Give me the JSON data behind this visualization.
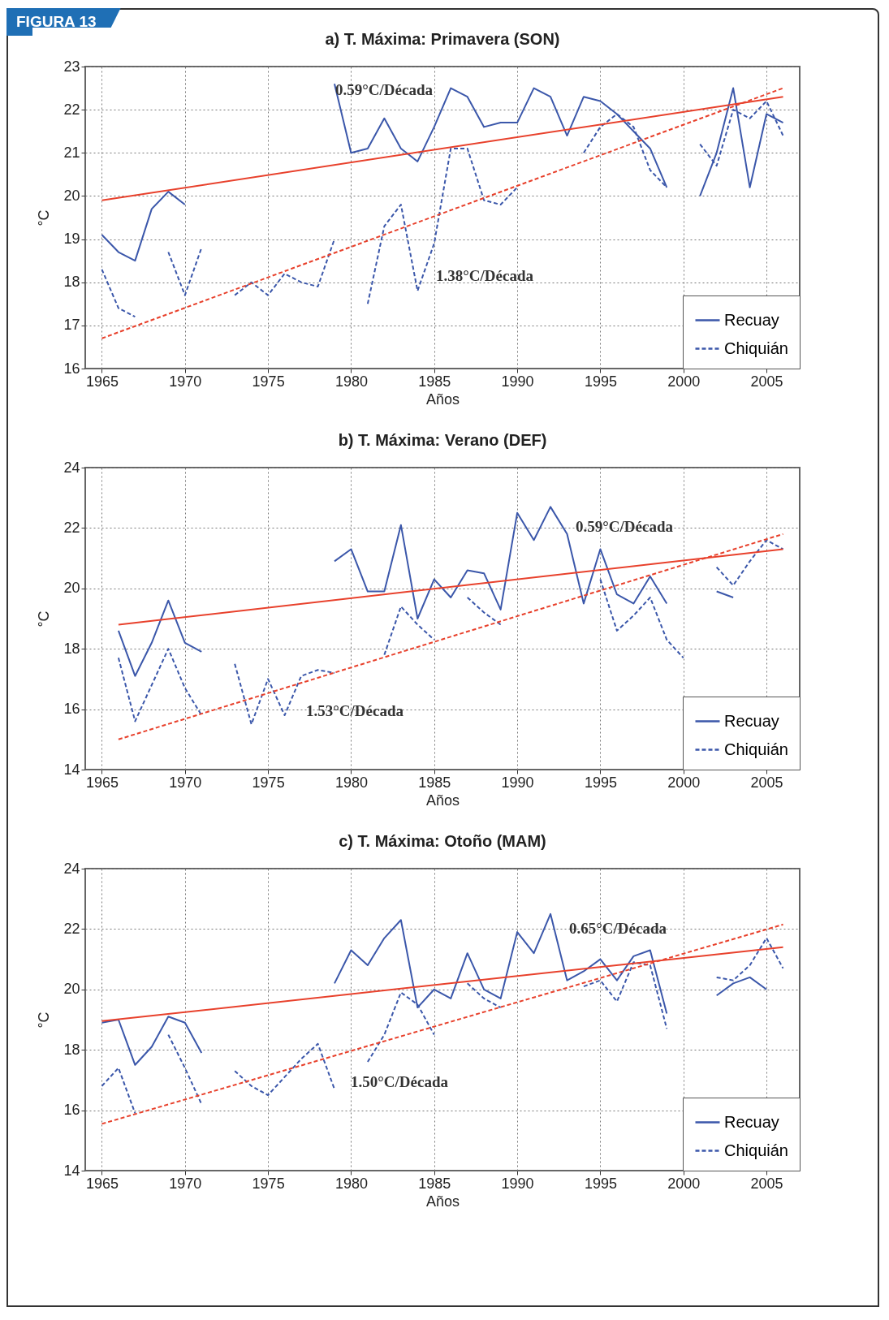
{
  "chart_data": [
    {
      "type": "line",
      "title": "a) T. Máxima: Primavera (SON)",
      "xlabel": "Años",
      "ylabel": "°C",
      "xlim": [
        1964,
        2007
      ],
      "xticks": [
        1965,
        1970,
        1975,
        1980,
        1985,
        1990,
        1995,
        2000,
        2005
      ],
      "ylim": [
        16,
        23
      ],
      "yticks": [
        16,
        17,
        18,
        19,
        20,
        21,
        22,
        23
      ],
      "grid": true,
      "legend": "bottom right",
      "x": [
        1965,
        1966,
        1967,
        1968,
        1969,
        1970,
        1971,
        1972,
        1973,
        1974,
        1975,
        1976,
        1977,
        1978,
        1979,
        1980,
        1981,
        1982,
        1983,
        1984,
        1985,
        1986,
        1987,
        1988,
        1989,
        1990,
        1991,
        1992,
        1993,
        1994,
        1995,
        1996,
        1997,
        1998,
        1999,
        2000,
        2001,
        2002,
        2003,
        2004,
        2005,
        2006
      ],
      "series": [
        {
          "name": "Recuay",
          "color": "#3b57aa",
          "line_style": "solid",
          "values": [
            19.1,
            18.7,
            18.5,
            19.7,
            20.1,
            19.8,
            null,
            null,
            null,
            null,
            null,
            null,
            null,
            null,
            22.6,
            21.0,
            21.1,
            21.8,
            21.1,
            20.8,
            21.6,
            22.5,
            22.3,
            21.6,
            21.7,
            21.7,
            22.5,
            22.3,
            21.4,
            22.3,
            22.2,
            21.9,
            21.5,
            21.1,
            20.2,
            null,
            20.0,
            21.0,
            22.5,
            20.2,
            21.9,
            21.7
          ]
        },
        {
          "name": "Chiquián",
          "color": "#3b57aa",
          "line_style": "dashed",
          "values": [
            18.3,
            17.4,
            17.2,
            null,
            18.7,
            17.7,
            18.8,
            null,
            17.7,
            18.0,
            17.7,
            18.2,
            18.0,
            17.9,
            19.0,
            null,
            17.5,
            19.3,
            19.8,
            17.8,
            18.9,
            21.1,
            21.1,
            19.9,
            19.8,
            20.2,
            null,
            null,
            null,
            21.0,
            21.6,
            21.9,
            21.6,
            20.6,
            20.2,
            null,
            21.2,
            20.7,
            22.0,
            21.8,
            22.2,
            21.4
          ]
        },
        {
          "type": "line",
          "x": [
            1965,
            2006
          ],
          "color": "#e8412c",
          "line_style": "solid",
          "values": [
            19.9,
            22.3
          ]
        },
        {
          "type": "line",
          "x": [
            1965,
            2006
          ],
          "color": "#e8412c",
          "line_style": "dashed",
          "values": [
            16.7,
            22.5
          ]
        }
      ],
      "annotations": [
        "FIGURA 13",
        "0.59°C/Década",
        "1.38°C/Década"
      ]
    },
    {
      "type": "line",
      "title": "b) T. Máxima: Verano (DEF)",
      "xlabel": "Años",
      "ylabel": "°C",
      "xlim": [
        1964,
        2007
      ],
      "xticks": [
        1965,
        1970,
        1975,
        1980,
        1985,
        1990,
        1995,
        2000,
        2005
      ],
      "ylim": [
        14,
        24
      ],
      "yticks": [
        14,
        16,
        18,
        20,
        22,
        24
      ],
      "grid": true,
      "legend": "bottom right",
      "x": [
        1966,
        1967,
        1968,
        1969,
        1970,
        1971,
        1972,
        1973,
        1974,
        1975,
        1976,
        1977,
        1978,
        1979,
        1980,
        1981,
        1982,
        1983,
        1984,
        1985,
        1986,
        1987,
        1988,
        1989,
        1990,
        1991,
        1992,
        1993,
        1994,
        1995,
        1996,
        1997,
        1998,
        1999,
        2000,
        2001,
        2002,
        2003,
        2004,
        2005,
        2006
      ],
      "series": [
        {
          "name": "Recuay",
          "color": "#3b57aa",
          "line_style": "solid",
          "values": [
            18.6,
            17.1,
            18.2,
            19.6,
            18.2,
            17.9,
            null,
            null,
            null,
            null,
            null,
            null,
            null,
            20.9,
            21.3,
            19.9,
            19.9,
            22.1,
            19.0,
            20.3,
            19.7,
            20.6,
            20.5,
            19.3,
            22.5,
            21.6,
            22.7,
            21.8,
            19.5,
            21.3,
            19.8,
            19.5,
            20.4,
            19.5,
            null,
            null,
            19.9,
            19.7,
            null,
            null,
            null
          ]
        },
        {
          "name": "Chiquián",
          "color": "#3b57aa",
          "line_style": "dashed",
          "values": [
            17.7,
            15.6,
            16.8,
            18.0,
            16.7,
            15.8,
            null,
            17.5,
            15.5,
            17.0,
            15.8,
            17.1,
            17.3,
            17.2,
            null,
            null,
            17.8,
            19.4,
            18.8,
            18.3,
            null,
            19.7,
            19.2,
            18.8,
            null,
            null,
            null,
            null,
            null,
            20.3,
            18.6,
            19.1,
            19.7,
            18.3,
            17.7,
            null,
            20.7,
            20.1,
            20.9,
            21.6,
            21.3
          ]
        },
        {
          "type": "line",
          "x": [
            1966,
            2006
          ],
          "color": "#e8412c",
          "line_style": "solid",
          "values": [
            18.8,
            21.3
          ]
        },
        {
          "type": "line",
          "x": [
            1966,
            2006
          ],
          "color": "#e8412c",
          "line_style": "dashed",
          "values": [
            15.0,
            21.8
          ]
        }
      ],
      "annotations": [
        "0.59°C/Década",
        "1.53°C/Década"
      ]
    },
    {
      "type": "line",
      "title": "c) T. Máxima: Otoño (MAM)",
      "xlabel": "Años",
      "ylabel": "°C",
      "xlim": [
        1964,
        2007
      ],
      "xticks": [
        1965,
        1970,
        1975,
        1980,
        1985,
        1990,
        1995,
        2000,
        2005
      ],
      "ylim": [
        14,
        24
      ],
      "yticks": [
        14,
        16,
        18,
        20,
        22,
        24
      ],
      "grid": true,
      "legend": "bottom right",
      "x": [
        1965,
        1966,
        1967,
        1968,
        1969,
        1970,
        1971,
        1972,
        1973,
        1974,
        1975,
        1976,
        1977,
        1978,
        1979,
        1980,
        1981,
        1982,
        1983,
        1984,
        1985,
        1986,
        1987,
        1988,
        1989,
        1990,
        1991,
        1992,
        1993,
        1994,
        1995,
        1996,
        1997,
        1998,
        1999,
        2000,
        2001,
        2002,
        2003,
        2004,
        2005,
        2006
      ],
      "series": [
        {
          "name": "Recuay",
          "color": "#3b57aa",
          "line_style": "solid",
          "values": [
            18.9,
            19.0,
            17.5,
            18.1,
            19.1,
            18.9,
            17.9,
            null,
            null,
            null,
            null,
            null,
            null,
            null,
            20.2,
            21.3,
            20.8,
            21.7,
            22.3,
            19.4,
            20.0,
            19.7,
            21.2,
            20.0,
            19.7,
            21.9,
            21.2,
            22.5,
            20.3,
            20.6,
            21.0,
            20.3,
            21.1,
            21.3,
            19.2,
            null,
            null,
            19.8,
            20.2,
            20.4,
            20.0,
            null
          ]
        },
        {
          "name": "Chiquián",
          "color": "#3b57aa",
          "line_style": "dashed",
          "values": [
            16.8,
            17.4,
            15.9,
            null,
            18.5,
            17.4,
            16.2,
            null,
            17.3,
            16.8,
            16.5,
            17.1,
            17.7,
            18.2,
            16.7,
            null,
            17.6,
            18.5,
            19.9,
            19.5,
            18.5,
            null,
            20.2,
            19.7,
            19.4,
            null,
            null,
            null,
            null,
            20.1,
            20.3,
            19.6,
            20.9,
            20.8,
            18.7,
            null,
            null,
            20.4,
            20.3,
            20.8,
            21.7,
            20.7
          ]
        },
        {
          "type": "line",
          "x": [
            1965,
            2006
          ],
          "color": "#e8412c",
          "line_style": "solid",
          "values": [
            18.95,
            21.4
          ]
        },
        {
          "type": "line",
          "x": [
            1965,
            2006
          ],
          "color": "#e8412c",
          "line_style": "dashed",
          "values": [
            15.55,
            22.15
          ]
        }
      ],
      "annotations": [
        "0.65°C/Década",
        "1.50°C/Década"
      ]
    }
  ]
}
